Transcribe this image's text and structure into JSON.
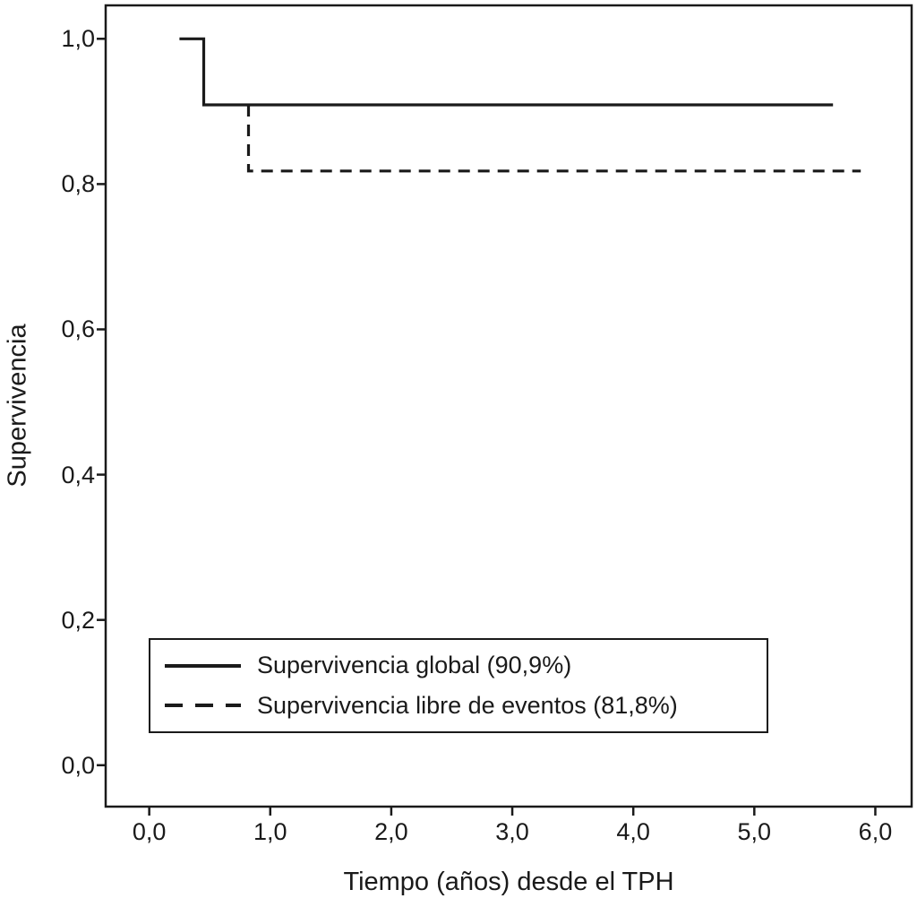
{
  "chart_data": {
    "type": "line",
    "variant": "kaplan-meier-step",
    "title": "",
    "xlabel": "Tiempo (años) desde el TPH",
    "ylabel": "Supervivencia",
    "axis_color": "#1a1a1a",
    "background_color": "#ffffff",
    "grid": false,
    "xlim": [
      -0.36,
      6.3
    ],
    "ylim": [
      -0.057,
      1.046
    ],
    "x_ticks": [
      0.0,
      1.0,
      2.0,
      3.0,
      4.0,
      5.0,
      6.0
    ],
    "x_tick_labels": [
      "0,0",
      "1,0",
      "2,0",
      "3,0",
      "4,0",
      "5,0",
      "6,0"
    ],
    "y_ticks": [
      0.0,
      0.2,
      0.4,
      0.6,
      0.8,
      1.0
    ],
    "y_tick_labels": [
      "0,0",
      "0,2",
      "0,4",
      "0,6",
      "0,8",
      "1,0"
    ],
    "series": [
      {
        "name": "Supervivencia global (90,9%)",
        "style": "solid",
        "color": "#1a1a1a",
        "final_value_pct": "90,9%",
        "points": [
          [
            0.25,
            1.0
          ],
          [
            0.45,
            1.0
          ],
          [
            0.45,
            0.909
          ],
          [
            5.65,
            0.909
          ]
        ]
      },
      {
        "name": "Supervivencia libre de eventos (81,8%)",
        "style": "dashed",
        "color": "#1a1a1a",
        "final_value_pct": "81,8%",
        "points": [
          [
            0.82,
            0.909
          ],
          [
            0.82,
            0.818
          ],
          [
            5.88,
            0.818
          ]
        ]
      }
    ],
    "legend": {
      "position": "lower-left",
      "border": true
    }
  }
}
